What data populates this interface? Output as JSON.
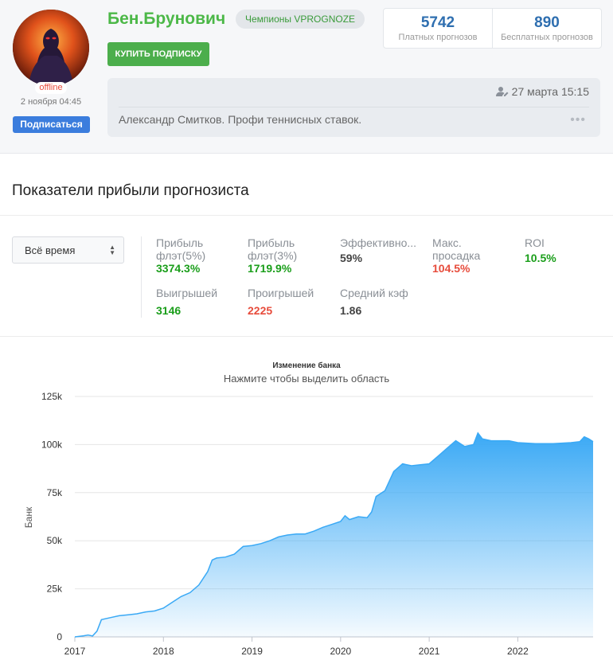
{
  "profile": {
    "name": "Бен.Брунович",
    "status": "offline",
    "last_seen": "2 ноября 04:45",
    "subscribe_label": "Подписаться",
    "badge": "Чемпионы VPROGNOZE",
    "buy_label": "КУПИТЬ ПОДПИСКУ",
    "paid_count": "5742",
    "paid_label": "Платных прогнозов",
    "free_count": "890",
    "free_label": "Бесплатных прогнозов"
  },
  "post": {
    "date": "27 марта 15:15",
    "text": "Александр Смитков. Профи теннисных ставок.",
    "more": "•••"
  },
  "stats_section": {
    "title": "Показатели прибыли прогнозиста",
    "period": "Всё время",
    "metrics": [
      {
        "label": "Прибыль флэт(5%)",
        "value": "3374.3%",
        "tone": "green"
      },
      {
        "label": "Прибыль флэт(3%)",
        "value": "1719.9%",
        "tone": "green"
      },
      {
        "label": "Эффективно...",
        "value": "59%",
        "tone": "dark"
      },
      {
        "label": "Макс. просадка",
        "value": "104.5%",
        "tone": "red"
      },
      {
        "label": "ROI",
        "value": "10.5%",
        "tone": "green"
      },
      {
        "label": "Выигрышей",
        "value": "3146",
        "tone": "green"
      },
      {
        "label": "Проигрышей",
        "value": "2225",
        "tone": "red"
      },
      {
        "label": "Средний кэф",
        "value": "1.86",
        "tone": "dark"
      }
    ]
  },
  "chart_data": {
    "type": "area",
    "title": "Изменение банка",
    "subtitle": "Нажмите чтобы выделить область",
    "ylabel": "Банк",
    "xlabel": "",
    "yticks": [
      "0",
      "25k",
      "50k",
      "75k",
      "100k",
      "125k"
    ],
    "xticks": [
      "2017",
      "2018",
      "2019",
      "2020",
      "2021",
      "2022"
    ],
    "ylim": [
      0,
      125000
    ],
    "xlim": [
      2017.0,
      2022.85
    ],
    "color": "#3aa9f5",
    "points": [
      [
        2017.0,
        0
      ],
      [
        2017.1,
        600
      ],
      [
        2017.15,
        1000
      ],
      [
        2017.2,
        500
      ],
      [
        2017.25,
        3000
      ],
      [
        2017.3,
        9000
      ],
      [
        2017.4,
        10000
      ],
      [
        2017.5,
        11000
      ],
      [
        2017.6,
        11500
      ],
      [
        2017.7,
        12000
      ],
      [
        2017.8,
        13000
      ],
      [
        2017.9,
        13500
      ],
      [
        2018.0,
        15000
      ],
      [
        2018.1,
        18000
      ],
      [
        2018.2,
        21000
      ],
      [
        2018.3,
        23000
      ],
      [
        2018.4,
        27000
      ],
      [
        2018.5,
        34000
      ],
      [
        2018.55,
        40000
      ],
      [
        2018.6,
        41000
      ],
      [
        2018.7,
        41500
      ],
      [
        2018.8,
        43000
      ],
      [
        2018.9,
        47000
      ],
      [
        2019.0,
        47500
      ],
      [
        2019.1,
        48500
      ],
      [
        2019.2,
        50000
      ],
      [
        2019.3,
        52000
      ],
      [
        2019.4,
        53000
      ],
      [
        2019.5,
        53500
      ],
      [
        2019.6,
        53500
      ],
      [
        2019.7,
        55000
      ],
      [
        2019.8,
        57000
      ],
      [
        2019.9,
        58500
      ],
      [
        2020.0,
        60000
      ],
      [
        2020.05,
        63000
      ],
      [
        2020.1,
        61000
      ],
      [
        2020.2,
        62500
      ],
      [
        2020.3,
        62000
      ],
      [
        2020.35,
        65000
      ],
      [
        2020.4,
        73000
      ],
      [
        2020.5,
        76000
      ],
      [
        2020.6,
        86000
      ],
      [
        2020.7,
        90000
      ],
      [
        2020.8,
        89000
      ],
      [
        2020.9,
        89500
      ],
      [
        2021.0,
        90000
      ],
      [
        2021.1,
        94000
      ],
      [
        2021.2,
        98000
      ],
      [
        2021.3,
        102000
      ],
      [
        2021.4,
        99000
      ],
      [
        2021.5,
        100000
      ],
      [
        2021.55,
        106000
      ],
      [
        2021.6,
        103000
      ],
      [
        2021.7,
        102000
      ],
      [
        2021.8,
        102000
      ],
      [
        2021.9,
        102000
      ],
      [
        2022.0,
        101000
      ],
      [
        2022.2,
        100500
      ],
      [
        2022.4,
        100500
      ],
      [
        2022.6,
        101000
      ],
      [
        2022.7,
        101500
      ],
      [
        2022.75,
        104000
      ],
      [
        2022.8,
        103000
      ],
      [
        2022.85,
        101500
      ]
    ]
  }
}
